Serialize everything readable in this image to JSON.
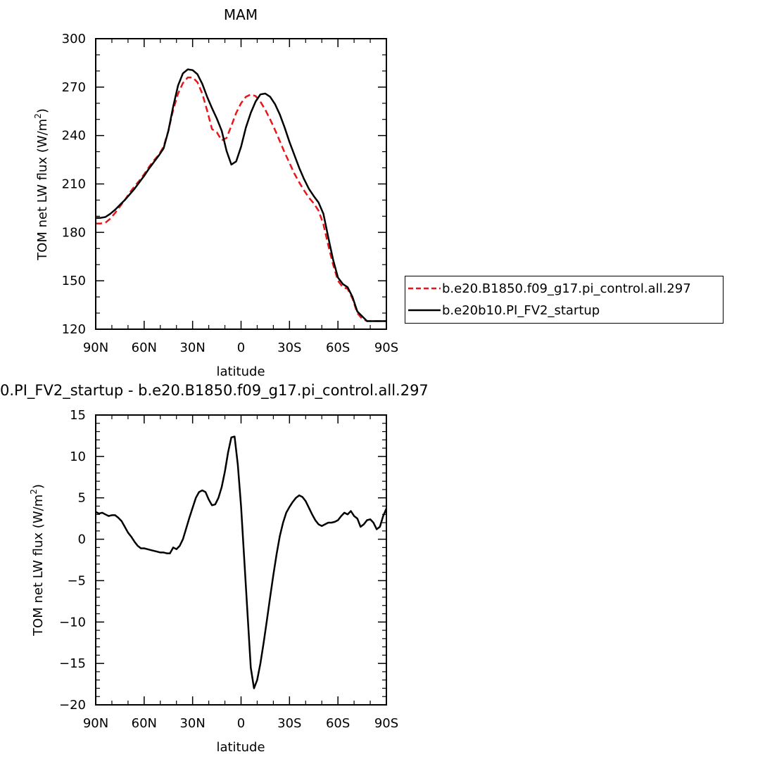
{
  "chart_data": [
    {
      "type": "line",
      "title": "MAM",
      "xlabel": "latitude",
      "ylabel": "TOM net LW flux (W/m²)",
      "ylabel_main": "TOM net LW flux (W/m",
      "ylabel_sup": "2",
      "ylabel_end": ")",
      "xlim": [
        90,
        -90
      ],
      "ylim": [
        120,
        300
      ],
      "xticks": [
        90,
        60,
        30,
        0,
        -30,
        -60,
        -90
      ],
      "xtick_labels": [
        "90N",
        "60N",
        "30N",
        "0",
        "30S",
        "60S",
        "90S"
      ],
      "yticks": [
        120,
        150,
        180,
        210,
        240,
        270,
        300
      ],
      "ytick_labels": [
        "120",
        "150",
        "180",
        "210",
        "240",
        "270",
        "300"
      ],
      "legend_position": "right",
      "series": [
        {
          "name": "b.e20.B1850.f09_g17.pi_control.all.297",
          "color": "#e8161a",
          "dash": "dashed",
          "x": [
            90,
            87,
            84,
            81,
            78,
            75,
            72,
            69,
            66,
            63,
            60,
            57,
            54,
            51,
            48,
            45,
            42,
            39,
            36,
            33,
            30,
            27,
            24,
            21,
            18,
            15,
            12,
            9,
            6,
            3,
            0,
            -3,
            -6,
            -9,
            -12,
            -15,
            -18,
            -21,
            -24,
            -27,
            -30,
            -33,
            -36,
            -39,
            -42,
            -45,
            -48,
            -51,
            -54,
            -57,
            -60,
            -63,
            -66,
            -69,
            -72,
            -75,
            -78,
            -81,
            -84,
            -87,
            -90
          ],
          "y": [
            185.5,
            185.5,
            186,
            188.5,
            192,
            196,
            200,
            204.5,
            208.5,
            212,
            216,
            220.5,
            224.5,
            228,
            233,
            243,
            256,
            266,
            272.5,
            276,
            276,
            273,
            266,
            255.5,
            244,
            242,
            237,
            238.5,
            246,
            254,
            260,
            264,
            265.5,
            264.5,
            261,
            256,
            250,
            243.5,
            236.5,
            229.5,
            223,
            216.5,
            211,
            206,
            201.5,
            198,
            193.5,
            185,
            172,
            160,
            150,
            146,
            145,
            139,
            130,
            126.5,
            125,
            125,
            125,
            125,
            125
          ]
        },
        {
          "name": "b.e20b10.PI_FV2_startup",
          "color": "#000000",
          "dash": "solid",
          "x": [
            90,
            87,
            84,
            81,
            78,
            75,
            72,
            69,
            66,
            63,
            60,
            57,
            54,
            51,
            48,
            45,
            42,
            39,
            36,
            33,
            30,
            27,
            24,
            21,
            18,
            15,
            12,
            9,
            6,
            3,
            0,
            -3,
            -6,
            -9,
            -12,
            -15,
            -18,
            -21,
            -24,
            -27,
            -30,
            -33,
            -36,
            -39,
            -42,
            -45,
            -48,
            -51,
            -54,
            -57,
            -60,
            -63,
            -66,
            -69,
            -72,
            -75,
            -78,
            -81,
            -84,
            -87,
            -90
          ],
          "y": [
            189,
            189,
            189.5,
            191.5,
            194,
            197,
            200,
            203.5,
            207,
            211,
            215,
            219.5,
            223.5,
            227.5,
            232,
            243,
            258,
            271,
            278.5,
            281,
            280.5,
            278,
            272,
            264,
            257,
            250.5,
            243,
            230.5,
            222,
            224,
            233,
            245,
            254,
            261,
            265.5,
            266,
            264,
            259.5,
            253,
            245,
            236,
            228,
            220,
            213,
            207,
            202.5,
            198.5,
            191.5,
            177,
            163,
            152,
            148,
            146,
            140,
            131,
            128,
            125,
            125,
            125,
            125,
            125
          ]
        }
      ]
    },
    {
      "type": "line",
      "title": "0.PI_FV2_startup - b.e20.B1850.f09_g17.pi_control.all.297",
      "xlabel": "latitude",
      "ylabel": "TOM net LW flux (W/m²)",
      "ylabel_main": "TOM net LW flux (W/m",
      "ylabel_sup": "2",
      "ylabel_end": ")",
      "xlim": [
        90,
        -90
      ],
      "ylim": [
        -20,
        15
      ],
      "xticks": [
        90,
        60,
        30,
        0,
        -30,
        -60,
        -90
      ],
      "xtick_labels": [
        "90N",
        "60N",
        "30N",
        "0",
        "30S",
        "60S",
        "90S"
      ],
      "yticks": [
        -20,
        -15,
        -10,
        -5,
        0,
        5,
        10,
        15
      ],
      "ytick_labels": [
        "−20",
        "−15",
        "−10",
        "−5",
        "0",
        "5",
        "10",
        "15"
      ],
      "series": [
        {
          "color": "#000000",
          "dash": "solid",
          "x": [
            90,
            88,
            86,
            84,
            82,
            80,
            78,
            76,
            74,
            72,
            70,
            68,
            66,
            64,
            62,
            60,
            58,
            56,
            54,
            52,
            50,
            48,
            46,
            44,
            42,
            40,
            38,
            36,
            34,
            32,
            30,
            28,
            26,
            24,
            22,
            20,
            18,
            16,
            14,
            12,
            10,
            8,
            6,
            4,
            2,
            0,
            -2,
            -4,
            -6,
            -8,
            -10,
            -12,
            -14,
            -16,
            -18,
            -20,
            -22,
            -24,
            -26,
            -28,
            -30,
            -32,
            -34,
            -36,
            -38,
            -40,
            -42,
            -44,
            -46,
            -48,
            -50,
            -52,
            -54,
            -56,
            -58,
            -60,
            -62,
            -64,
            -66,
            -68,
            -70,
            -72,
            -74,
            -76,
            -78,
            -80,
            -82,
            -84,
            -86,
            -88,
            -90
          ],
          "y": [
            3.3,
            3.1,
            3.2,
            3.0,
            2.8,
            2.9,
            2.9,
            2.6,
            2.2,
            1.5,
            0.8,
            0.3,
            -0.3,
            -0.8,
            -1.1,
            -1.1,
            -1.2,
            -1.3,
            -1.4,
            -1.5,
            -1.6,
            -1.6,
            -1.7,
            -1.7,
            -1.0,
            -1.2,
            -0.8,
            0.0,
            1.3,
            2.6,
            3.8,
            5.0,
            5.7,
            5.9,
            5.7,
            4.8,
            4.1,
            4.2,
            5.0,
            6.3,
            8.2,
            10.5,
            12.3,
            12.4,
            9.0,
            4.0,
            -2.5,
            -9.0,
            -15.5,
            -18.0,
            -17.0,
            -15.0,
            -12.5,
            -9.8,
            -7.0,
            -4.3,
            -1.8,
            0.4,
            2.0,
            3.2,
            3.9,
            4.5,
            5.0,
            5.3,
            5.1,
            4.6,
            3.8,
            3.0,
            2.3,
            1.8,
            1.6,
            1.8,
            2.0,
            2.0,
            2.1,
            2.3,
            2.8,
            3.2,
            3.0,
            3.4,
            2.8,
            2.5,
            1.5,
            1.8,
            2.3,
            2.4,
            2.0,
            1.2,
            1.5,
            2.8,
            3.7
          ]
        }
      ]
    }
  ]
}
